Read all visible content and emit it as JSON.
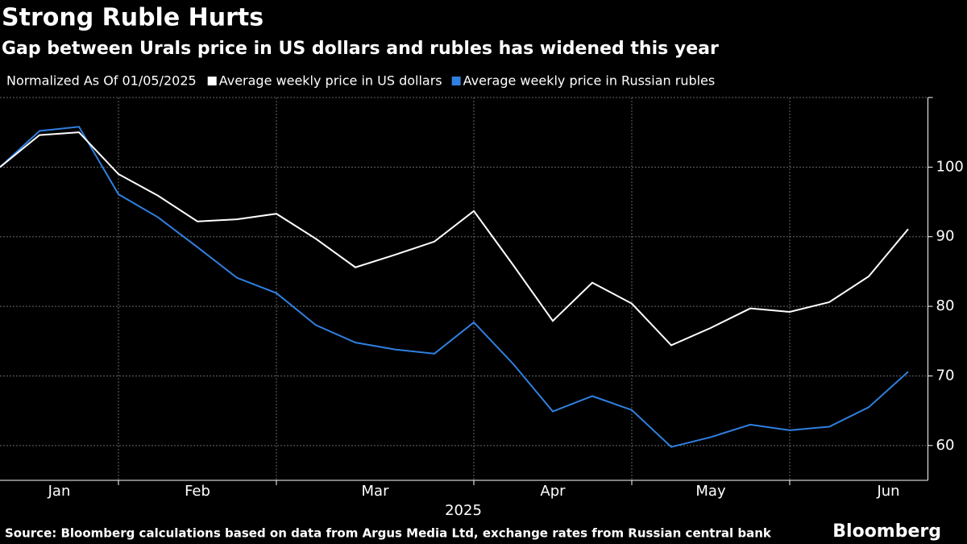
{
  "chart_data": {
    "type": "line",
    "title": "Strong Ruble Hurts",
    "subtitle": "Gap between Urals price in US dollars and rubles has widened this year",
    "legend_title": "Normalized As Of 01/05/2025",
    "x": [
      0,
      1,
      2,
      3,
      4,
      5,
      6,
      7,
      8,
      9,
      10,
      11,
      12,
      13,
      14,
      15,
      16,
      17,
      18,
      19,
      20,
      21,
      22,
      23
    ],
    "xlim": [
      0,
      23.5
    ],
    "xticks": [
      {
        "value": 1.5,
        "label": "Jan"
      },
      {
        "value": 5,
        "label": "Feb"
      },
      {
        "value": 9.5,
        "label": "Mar"
      },
      {
        "value": 14,
        "label": "Apr"
      },
      {
        "value": 18,
        "label": "May"
      },
      {
        "value": 22.5,
        "label": "Jun"
      }
    ],
    "xgrid": [
      3,
      7,
      12,
      16,
      20
    ],
    "xlabel": "2025",
    "series": [
      {
        "name": "Average weekly price in US dollars",
        "color": "#ffffff",
        "values": [
          100,
          104.6,
          105.0,
          99.0,
          95.9,
          92.2,
          92.5,
          93.3,
          89.7,
          85.6,
          87.4,
          89.3,
          93.7,
          85.9,
          77.9,
          83.4,
          80.4,
          74.4,
          76.9,
          79.7,
          79.2,
          80.6,
          84.3,
          91.1
        ]
      },
      {
        "name": "Average weekly price in Russian rubles",
        "color": "#2f80e0",
        "values": [
          100,
          105.2,
          105.8,
          96.1,
          92.8,
          88.5,
          84.1,
          81.9,
          77.3,
          74.8,
          73.8,
          73.2,
          77.7,
          71.7,
          64.9,
          67.1,
          65.1,
          59.8,
          61.2,
          63.0,
          62.2,
          62.7,
          65.5,
          70.6
        ]
      }
    ],
    "ylim": [
      55,
      110
    ],
    "yticks": [
      60,
      70,
      80,
      90,
      100
    ],
    "grid": true,
    "source": "Source: Bloomberg calculations based on data from Argus Media Ltd, exchange rates from Russian central bank",
    "brand": "Bloomberg"
  }
}
